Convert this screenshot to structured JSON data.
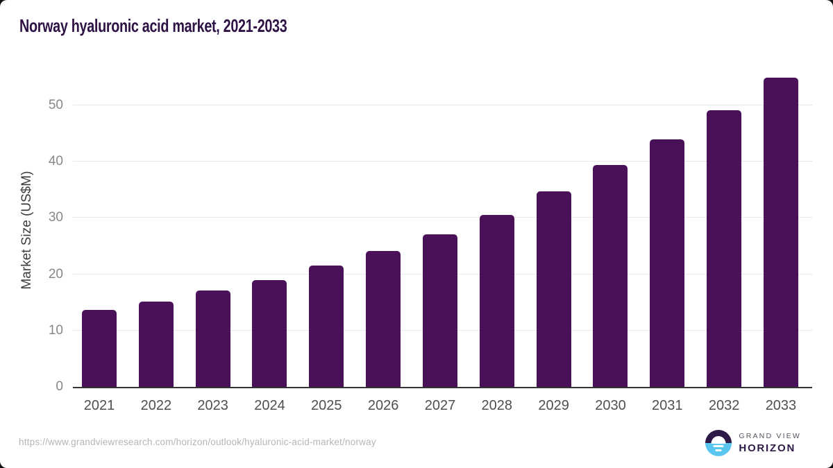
{
  "page": {
    "background_color": "#111111",
    "card_background": "#ffffff"
  },
  "chart_data": {
    "type": "bar",
    "title": "Norway hyaluronic acid market, 2021-2033",
    "title_color": "#2e1245",
    "categories": [
      "2021",
      "2022",
      "2023",
      "2024",
      "2025",
      "2026",
      "2027",
      "2028",
      "2029",
      "2030",
      "2031",
      "2032",
      "2033"
    ],
    "values": [
      13.7,
      15.2,
      17.1,
      19.0,
      21.5,
      24.1,
      27.1,
      30.6,
      34.7,
      39.4,
      44.0,
      49.2,
      55.0
    ],
    "xlabel": "",
    "ylabel": "Market Size (US$M)",
    "yticks": [
      0,
      10,
      20,
      30,
      40,
      50
    ],
    "ylim": [
      0,
      55.8
    ],
    "grid": true,
    "legend": false,
    "bar_color": "#4a1159",
    "gridline_color": "#e7e7e7",
    "axis_line_color": "#333333"
  },
  "footer": {
    "source_url": "https://www.grandviewresearch.com/horizon/outlook/hyaluronic-acid-market/norway",
    "logo": {
      "top_text": "GRAND VIEW",
      "bottom_text": "HORIZON",
      "mark_dark_color": "#2e1a47",
      "mark_blue_color": "#58c6ef"
    }
  }
}
